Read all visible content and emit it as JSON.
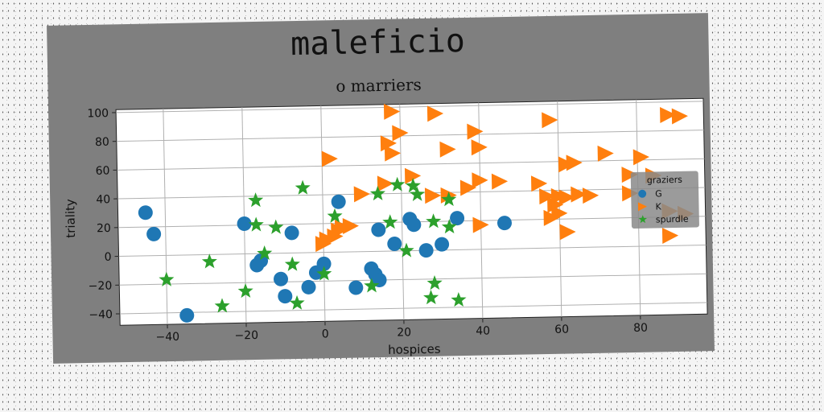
{
  "chart_data": {
    "type": "scatter",
    "title": "maleficio",
    "subtitle": "o marriers",
    "xlabel": "hospices",
    "ylabel": "triality",
    "xlim": [
      -52,
      97
    ],
    "ylim": [
      -48,
      102
    ],
    "xticks": [
      -40,
      -20,
      0,
      20,
      40,
      60,
      80
    ],
    "yticks": [
      -40,
      -20,
      0,
      20,
      40,
      60,
      80,
      100
    ],
    "grid": true,
    "legend": {
      "title": "graziers",
      "placement": "right"
    },
    "series": [
      {
        "name": "G",
        "marker": "circle",
        "color": "#1f77b4",
        "points": [
          [
            -45,
            30
          ],
          [
            -43,
            15
          ],
          [
            -35,
            -42
          ],
          [
            -20,
            21
          ],
          [
            -17,
            -8
          ],
          [
            -16,
            -5
          ],
          [
            -11,
            -18
          ],
          [
            -10,
            -30
          ],
          [
            -8,
            14
          ],
          [
            -4,
            -24
          ],
          [
            -2,
            -14
          ],
          [
            0,
            -8
          ],
          [
            4,
            35
          ],
          [
            8,
            -25
          ],
          [
            12,
            -12
          ],
          [
            13,
            -16
          ],
          [
            14,
            -20
          ],
          [
            14,
            15
          ],
          [
            18,
            5
          ],
          [
            22,
            22
          ],
          [
            23,
            18
          ],
          [
            26,
            0
          ],
          [
            30,
            4
          ],
          [
            34,
            22
          ],
          [
            46,
            18
          ]
        ]
      },
      {
        "name": "K",
        "marker": "triangle-right",
        "color": "#ff7f0e",
        "points": [
          [
            18,
            97
          ],
          [
            29,
            95
          ],
          [
            20,
            82
          ],
          [
            39,
            82
          ],
          [
            58,
            89
          ],
          [
            17,
            75
          ],
          [
            18,
            68
          ],
          [
            32,
            70
          ],
          [
            40,
            71
          ],
          [
            2,
            65
          ],
          [
            62,
            58
          ],
          [
            64,
            59
          ],
          [
            72,
            65
          ],
          [
            81,
            62
          ],
          [
            78,
            50
          ],
          [
            84,
            49
          ],
          [
            88,
            91
          ],
          [
            91,
            90
          ],
          [
            10,
            40
          ],
          [
            16,
            47
          ],
          [
            23,
            52
          ],
          [
            28,
            38
          ],
          [
            32,
            38
          ],
          [
            37,
            43
          ],
          [
            40,
            48
          ],
          [
            45,
            47
          ],
          [
            55,
            45
          ],
          [
            57,
            36
          ],
          [
            59,
            30
          ],
          [
            60,
            36
          ],
          [
            62,
            35
          ],
          [
            65,
            37
          ],
          [
            68,
            36
          ],
          [
            78,
            37
          ],
          [
            88,
            24
          ],
          [
            92,
            22
          ],
          [
            58,
            21
          ],
          [
            60,
            24
          ],
          [
            62,
            11
          ],
          [
            40,
            17
          ],
          [
            88,
            7
          ],
          [
            0,
            6
          ],
          [
            1,
            9
          ],
          [
            3,
            11
          ],
          [
            4,
            15
          ],
          [
            5,
            17
          ],
          [
            7,
            18
          ]
        ]
      },
      {
        "name": "spurdle",
        "marker": "star",
        "color": "#2ca02c",
        "points": [
          [
            -40,
            -17
          ],
          [
            -29,
            -5
          ],
          [
            -26,
            -36
          ],
          [
            -20,
            -26
          ],
          [
            -17,
            37
          ],
          [
            -17,
            20
          ],
          [
            -15,
            0
          ],
          [
            -12,
            18
          ],
          [
            -8,
            -8
          ],
          [
            -7,
            -35
          ],
          [
            -5,
            45
          ],
          [
            0,
            -15
          ],
          [
            3,
            25
          ],
          [
            12,
            -24
          ],
          [
            14,
            40
          ],
          [
            17,
            20
          ],
          [
            19,
            46
          ],
          [
            21,
            0
          ],
          [
            23,
            45
          ],
          [
            24,
            39
          ],
          [
            27,
            -33
          ],
          [
            28,
            20
          ],
          [
            28,
            -23
          ],
          [
            32,
            35
          ],
          [
            32,
            16
          ],
          [
            34,
            -35
          ]
        ]
      }
    ]
  }
}
